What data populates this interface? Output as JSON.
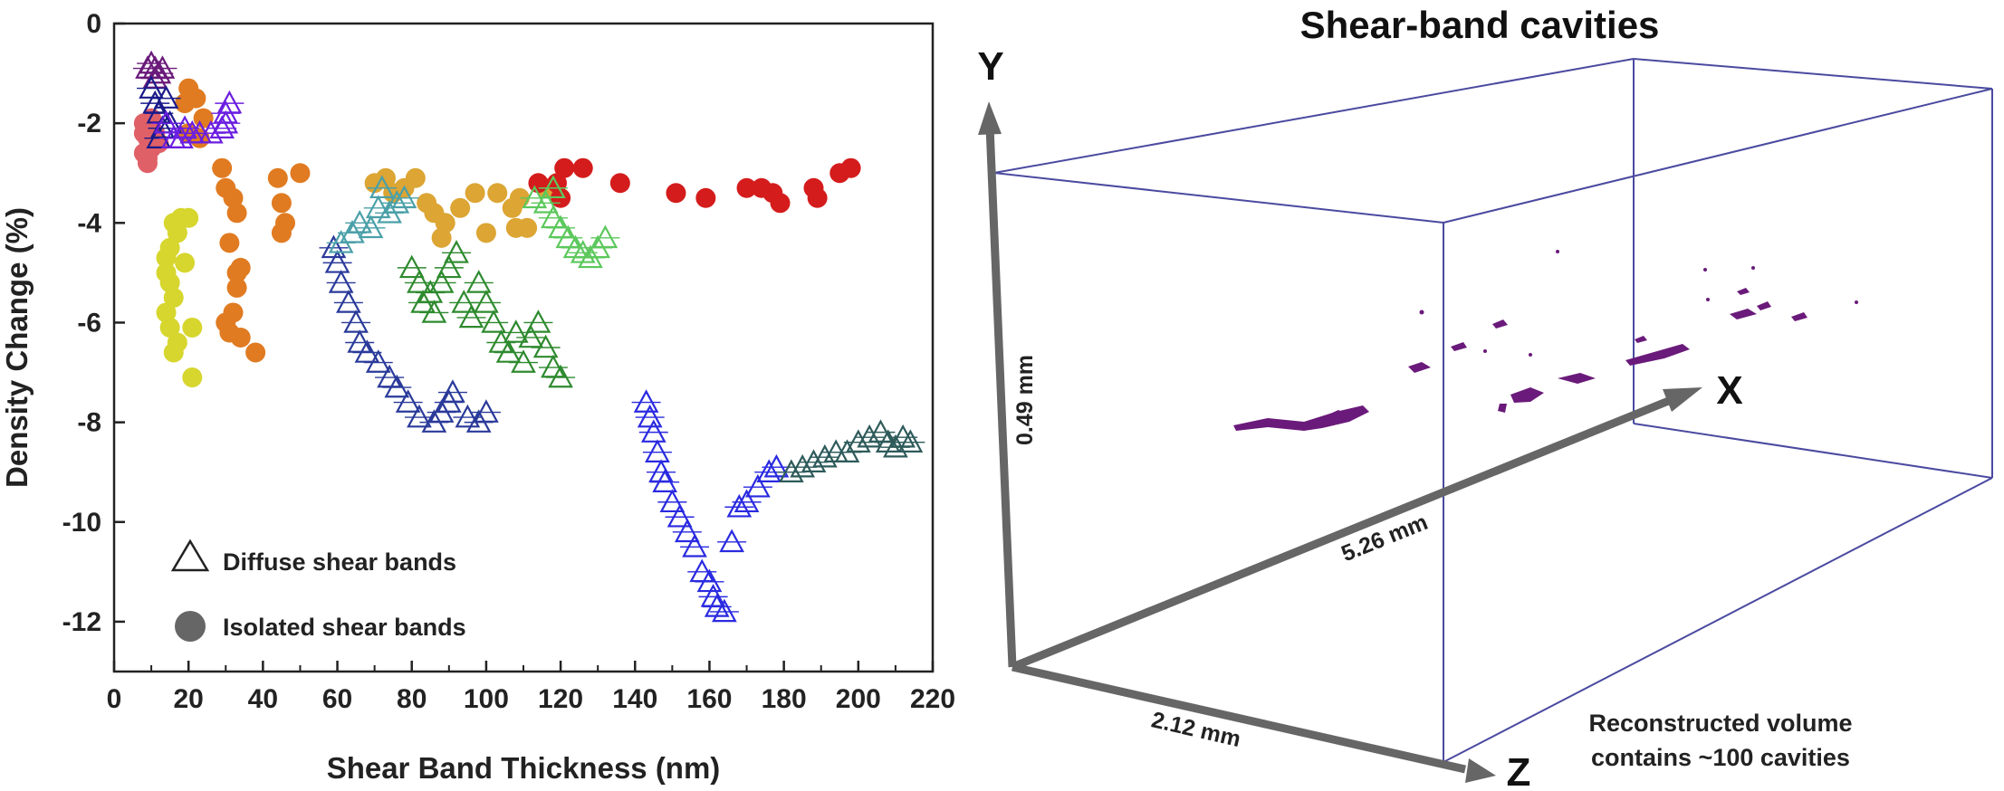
{
  "chart_data": [
    {
      "type": "scatter",
      "xlabel": "Shear Band Thickness (nm)",
      "ylabel": "Density Change (%)",
      "xlim": [
        0,
        220
      ],
      "ylim": [
        -13,
        0
      ],
      "xticks": [
        "0",
        "20",
        "40",
        "60",
        "80",
        "100",
        "120",
        "140",
        "160",
        "180",
        "200",
        "220"
      ],
      "yticks": [
        "0",
        "-2",
        "-4",
        "-6",
        "-8",
        "-10",
        "-12"
      ],
      "grid": false,
      "legend_position": "bottom-left",
      "legend": [
        {
          "marker": "triangle",
          "label": "Diffuse shear bands"
        },
        {
          "marker": "circle",
          "label": "Isolated shear bands"
        }
      ],
      "series": [
        {
          "marker": "circle",
          "color": "#e06068",
          "points": [
            [
              8,
              -2.0
            ],
            [
              9,
              -2.3
            ],
            [
              8,
              -2.6
            ],
            [
              9,
              -2.8
            ],
            [
              10,
              -2.5
            ],
            [
              11,
              -2.2
            ],
            [
              10,
              -1.9
            ],
            [
              9,
              -2.7
            ],
            [
              12,
              -2.4
            ],
            [
              8,
              -2.2
            ]
          ]
        },
        {
          "marker": "circle",
          "color": "#d6d62e",
          "points": [
            [
              14,
              -5.0
            ],
            [
              15,
              -4.5
            ],
            [
              16,
              -5.5
            ],
            [
              15,
              -6.1
            ],
            [
              17,
              -4.2
            ],
            [
              18,
              -3.9
            ],
            [
              16,
              -6.6
            ],
            [
              14,
              -5.8
            ],
            [
              19,
              -4.8
            ],
            [
              15,
              -5.2
            ],
            [
              17,
              -6.4
            ],
            [
              21,
              -7.1
            ],
            [
              21,
              -6.1
            ],
            [
              14,
              -4.7
            ],
            [
              16,
              -4.0
            ],
            [
              20,
              -3.9
            ]
          ]
        },
        {
          "marker": "circle",
          "color": "#e07b22",
          "points": [
            [
              19,
              -1.6
            ],
            [
              20,
              -1.3
            ],
            [
              22,
              -1.5
            ],
            [
              24,
              -1.9
            ],
            [
              20,
              -2.2
            ],
            [
              23,
              -2.3
            ],
            [
              29,
              -2.9
            ],
            [
              30,
              -3.3
            ],
            [
              32,
              -3.5
            ],
            [
              33,
              -3.8
            ],
            [
              31,
              -4.4
            ],
            [
              34,
              -4.9
            ],
            [
              33,
              -5.3
            ],
            [
              32,
              -5.8
            ],
            [
              31,
              -6.2
            ],
            [
              34,
              -6.3
            ],
            [
              38,
              -6.6
            ],
            [
              44,
              -3.1
            ],
            [
              45,
              -3.6
            ],
            [
              46,
              -4.0
            ],
            [
              45,
              -4.2
            ],
            [
              50,
              -3.0
            ],
            [
              30,
              -6.0
            ],
            [
              33,
              -5.0
            ]
          ]
        },
        {
          "marker": "circle",
          "color": "#dca534",
          "points": [
            [
              70,
              -3.2
            ],
            [
              73,
              -3.1
            ],
            [
              75,
              -3.4
            ],
            [
              78,
              -3.3
            ],
            [
              81,
              -3.1
            ],
            [
              84,
              -3.6
            ],
            [
              86,
              -3.8
            ],
            [
              89,
              -4.0
            ],
            [
              88,
              -4.3
            ],
            [
              93,
              -3.7
            ],
            [
              97,
              -3.4
            ],
            [
              100,
              -4.2
            ],
            [
              103,
              -3.4
            ],
            [
              107,
              -3.7
            ],
            [
              109,
              -3.5
            ],
            [
              108,
              -4.1
            ],
            [
              111,
              -4.1
            ],
            [
              116,
              -3.3
            ]
          ]
        },
        {
          "marker": "circle",
          "color": "#d41c1c",
          "points": [
            [
              114,
              -3.2
            ],
            [
              119,
              -3.2
            ],
            [
              120,
              -3.5
            ],
            [
              121,
              -2.9
            ],
            [
              126,
              -2.9
            ],
            [
              136,
              -3.2
            ],
            [
              151,
              -3.4
            ],
            [
              159,
              -3.5
            ],
            [
              170,
              -3.3
            ],
            [
              174,
              -3.3
            ],
            [
              177,
              -3.4
            ],
            [
              179,
              -3.6
            ],
            [
              188,
              -3.3
            ],
            [
              189,
              -3.5
            ],
            [
              195,
              -3.0
            ],
            [
              198,
              -2.9
            ]
          ]
        },
        {
          "marker": "triangle",
          "color": "#6a1a7a",
          "points": [
            [
              9,
              -0.9
            ],
            [
              10,
              -0.8
            ],
            [
              11,
              -0.9
            ],
            [
              12,
              -1.0
            ],
            [
              13,
              -0.9
            ],
            [
              11,
              -1.1
            ]
          ]
        },
        {
          "marker": "triangle",
          "color": "#1a1a8a",
          "points": [
            [
              10,
              -1.3
            ],
            [
              11,
              -1.6
            ],
            [
              12,
              -1.8
            ],
            [
              13,
              -2.1
            ],
            [
              12,
              -2.3
            ],
            [
              14,
              -1.5
            ],
            [
              15,
              -2.0
            ]
          ]
        },
        {
          "marker": "triangle",
          "color": "#6b1fe0",
          "points": [
            [
              14,
              -2.0
            ],
            [
              16,
              -2.3
            ],
            [
              18,
              -2.3
            ],
            [
              19,
              -2.1
            ],
            [
              21,
              -2.2
            ],
            [
              23,
              -2.2
            ],
            [
              26,
              -2.2
            ],
            [
              29,
              -2.1
            ],
            [
              30,
              -1.8
            ],
            [
              31,
              -1.6
            ],
            [
              30,
              -2.0
            ]
          ]
        },
        {
          "marker": "triangle",
          "color": "#2a3a9a",
          "points": [
            [
              59,
              -4.5
            ],
            [
              60,
              -4.8
            ],
            [
              61,
              -5.2
            ],
            [
              63,
              -5.6
            ],
            [
              65,
              -6.0
            ],
            [
              66,
              -6.4
            ],
            [
              68,
              -6.6
            ],
            [
              71,
              -6.8
            ],
            [
              74,
              -7.1
            ],
            [
              76,
              -7.3
            ],
            [
              79,
              -7.6
            ],
            [
              82,
              -7.9
            ],
            [
              86,
              -8.0
            ],
            [
              88,
              -7.8
            ],
            [
              90,
              -7.6
            ],
            [
              91,
              -7.4
            ],
            [
              95,
              -7.9
            ],
            [
              98,
              -8.0
            ],
            [
              100,
              -7.8
            ]
          ]
        },
        {
          "marker": "triangle",
          "color": "#4aa0a8",
          "points": [
            [
              61,
              -4.4
            ],
            [
              64,
              -4.2
            ],
            [
              66,
              -4.0
            ],
            [
              69,
              -4.1
            ],
            [
              71,
              -3.7
            ],
            [
              74,
              -3.8
            ],
            [
              76,
              -3.6
            ],
            [
              78,
              -3.5
            ],
            [
              72,
              -3.3
            ]
          ]
        },
        {
          "marker": "triangle",
          "color": "#2e8a2e",
          "points": [
            [
              80,
              -4.9
            ],
            [
              82,
              -5.2
            ],
            [
              83,
              -5.6
            ],
            [
              85,
              -5.4
            ],
            [
              86,
              -5.8
            ],
            [
              88,
              -5.2
            ],
            [
              90,
              -4.9
            ],
            [
              92,
              -4.6
            ],
            [
              94,
              -5.6
            ],
            [
              96,
              -5.9
            ],
            [
              98,
              -5.2
            ],
            [
              100,
              -5.6
            ],
            [
              102,
              -6.0
            ],
            [
              104,
              -6.4
            ],
            [
              106,
              -6.6
            ],
            [
              108,
              -6.2
            ],
            [
              110,
              -6.8
            ],
            [
              112,
              -6.3
            ],
            [
              114,
              -6.0
            ],
            [
              116,
              -6.5
            ],
            [
              118,
              -6.9
            ],
            [
              120,
              -7.1
            ]
          ]
        },
        {
          "marker": "triangle",
          "color": "#5cc85c",
          "points": [
            [
              113,
              -3.5
            ],
            [
              116,
              -3.6
            ],
            [
              118,
              -3.9
            ],
            [
              120,
              -4.1
            ],
            [
              122,
              -4.3
            ],
            [
              124,
              -4.5
            ],
            [
              126,
              -4.6
            ],
            [
              128,
              -4.7
            ],
            [
              130,
              -4.5
            ],
            [
              132,
              -4.3
            ],
            [
              118,
              -3.3
            ]
          ]
        },
        {
          "marker": "triangle",
          "color": "#2a2ae0",
          "points": [
            [
              143,
              -7.6
            ],
            [
              144,
              -7.9
            ],
            [
              145,
              -8.2
            ],
            [
              146,
              -8.6
            ],
            [
              147,
              -9.0
            ],
            [
              148,
              -9.2
            ],
            [
              150,
              -9.6
            ],
            [
              152,
              -9.9
            ],
            [
              154,
              -10.2
            ],
            [
              156,
              -10.5
            ],
            [
              158,
              -11.0
            ],
            [
              160,
              -11.2
            ],
            [
              161,
              -11.5
            ],
            [
              162,
              -11.7
            ],
            [
              164,
              -11.8
            ],
            [
              166,
              -10.4
            ],
            [
              168,
              -9.7
            ],
            [
              170,
              -9.6
            ],
            [
              173,
              -9.3
            ],
            [
              176,
              -9.0
            ],
            [
              178,
              -8.9
            ]
          ]
        },
        {
          "marker": "triangle",
          "color": "#2e5a5a",
          "points": [
            [
              182,
              -9.0
            ],
            [
              185,
              -8.9
            ],
            [
              188,
              -8.8
            ],
            [
              191,
              -8.7
            ],
            [
              194,
              -8.6
            ],
            [
              197,
              -8.6
            ],
            [
              200,
              -8.4
            ],
            [
              203,
              -8.3
            ],
            [
              206,
              -8.2
            ],
            [
              208,
              -8.4
            ],
            [
              210,
              -8.5
            ],
            [
              212,
              -8.3
            ],
            [
              214,
              -8.4
            ]
          ]
        }
      ]
    }
  ],
  "legend_text": {
    "diffuse": "Diffuse shear bands",
    "isolated": "Isolated shear bands"
  },
  "volume_panel": {
    "title": "Shear-band cavities",
    "axis_x": "X",
    "axis_y": "Y",
    "axis_z": "Z",
    "dim_y": "0.49 mm",
    "dim_x": "5.26 mm",
    "dim_z": "2.12 mm",
    "note_line1": "Reconstructed volume",
    "note_line2": "contains ~100 cavities",
    "cavity_color": "#6a1a7a",
    "box_color": "#4a4aa0"
  }
}
